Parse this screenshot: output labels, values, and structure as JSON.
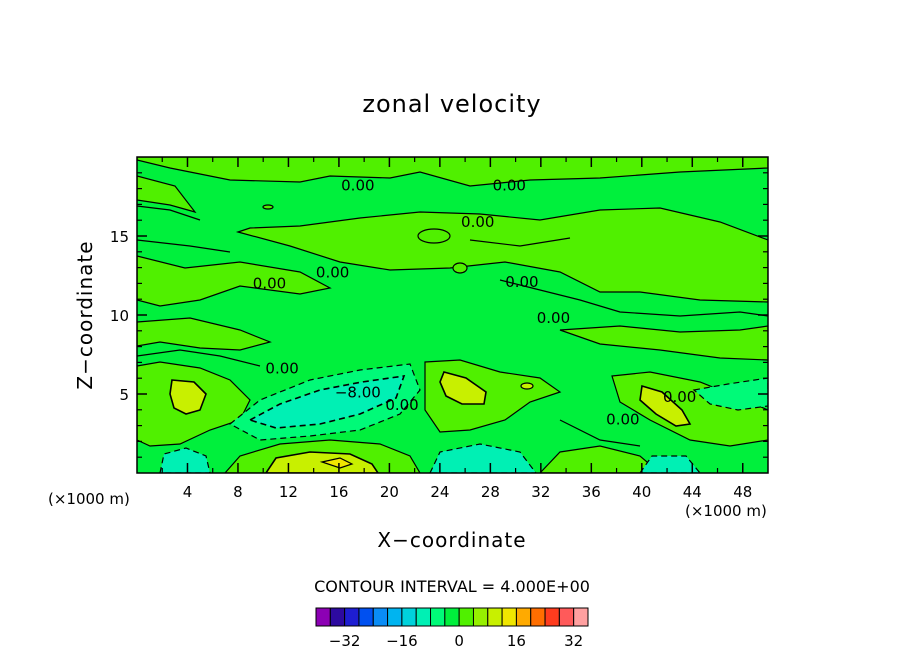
{
  "chart_data": {
    "type": "heatmap",
    "title": "zonal velocity",
    "xlabel": "X−coordinate",
    "ylabel": "Z−coordinate",
    "x_unit_left": "(×1000 m)",
    "x_unit_right": "(×1000 m)",
    "xlim": [
      0,
      50
    ],
    "ylim": [
      0,
      20
    ],
    "x_ticks": [
      4,
      8,
      12,
      16,
      20,
      24,
      28,
      32,
      36,
      40,
      44,
      48
    ],
    "y_ticks": [
      5,
      10,
      15
    ],
    "contour_interval_text": "CONTOUR INTERVAL = 4.000E+00",
    "contour_labels": [
      {
        "text": "0.00",
        "x": 17.5,
        "y": 18.2
      },
      {
        "text": "0.00",
        "x": 29.5,
        "y": 18.2
      },
      {
        "text": "0.00",
        "x": 27.0,
        "y": 15.9
      },
      {
        "text": "0.00",
        "x": 15.5,
        "y": 12.7
      },
      {
        "text": "0.00",
        "x": 10.5,
        "y": 12.0
      },
      {
        "text": "0.00",
        "x": 30.5,
        "y": 12.1
      },
      {
        "text": "0.00",
        "x": 33.0,
        "y": 9.8
      },
      {
        "text": "0.00",
        "x": 11.5,
        "y": 6.6
      },
      {
        "text": "−8.00",
        "x": 17.5,
        "y": 5.1
      },
      {
        "text": "0.00",
        "x": 21.0,
        "y": 4.3
      },
      {
        "text": "0.00",
        "x": 43.0,
        "y": 4.8
      },
      {
        "text": "0.00",
        "x": 38.5,
        "y": 3.4
      }
    ],
    "colorbar": {
      "levels": [
        -36,
        -32,
        -28,
        -24,
        -20,
        -16,
        -12,
        -8,
        -4,
        0,
        4,
        8,
        12,
        16,
        20,
        24,
        28,
        32,
        36
      ],
      "colors": [
        "#8c00b4",
        "#2d0aa0",
        "#1e1ed2",
        "#0050f0",
        "#0a8cf5",
        "#00b4f0",
        "#00d2dc",
        "#00f0b4",
        "#00fa78",
        "#00f03c",
        "#50f000",
        "#96f000",
        "#c8f000",
        "#f0e600",
        "#ffaa00",
        "#ff6e00",
        "#ff3c1e",
        "#ff5a5a",
        "#ffa0a0"
      ],
      "tick_labels": [
        "−32",
        "−16",
        "0",
        "16",
        "32"
      ],
      "tick_values": [
        -32,
        -16,
        0,
        16,
        32
      ]
    }
  },
  "colors": {
    "background_field": "#00f03c",
    "weak_positive": "#50f000",
    "positive": "#96f000",
    "strong_positive": "#c8f000",
    "weak_negative": "#00fa78",
    "negative": "#00f0b4",
    "strong_negative": "#00d2dc"
  }
}
